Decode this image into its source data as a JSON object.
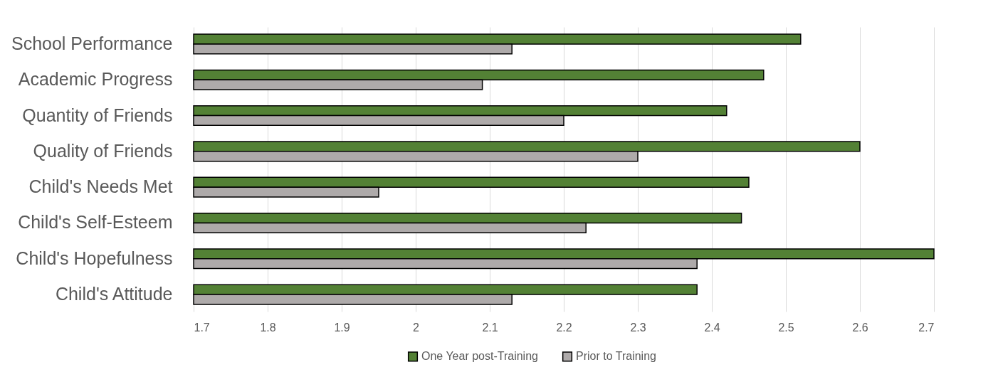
{
  "chart_data": {
    "type": "bar",
    "orientation": "horizontal",
    "categories": [
      "School  Performance",
      "Academic Progress",
      "Quantity of Friends",
      "Quality of Friends",
      "Child's Needs Met",
      "Child's Self-Esteem",
      "Child's Hopefulness",
      "Child's Attitude"
    ],
    "series": [
      {
        "name": "One Year post-Training",
        "color": "#538135",
        "values": [
          2.52,
          2.47,
          2.42,
          2.6,
          2.45,
          2.44,
          2.7,
          2.38
        ]
      },
      {
        "name": "Prior to Training",
        "color": "#aeaaaa",
        "values": [
          2.13,
          2.09,
          2.2,
          2.3,
          1.95,
          2.23,
          2.38,
          2.13
        ]
      }
    ],
    "xlim": [
      1.7,
      2.7
    ],
    "xticks": [
      1.7,
      1.8,
      1.9,
      2,
      2.1,
      2.2,
      2.3,
      2.4,
      2.5,
      2.6,
      2.7
    ],
    "grid": "x",
    "legend": "bottom"
  }
}
